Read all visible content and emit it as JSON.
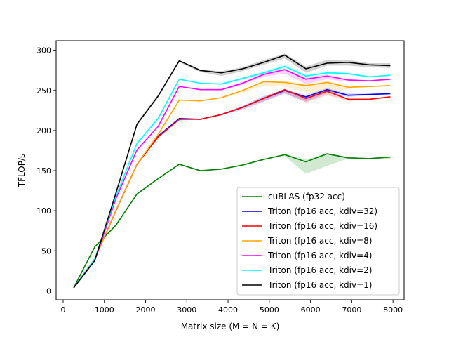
{
  "chart_data": {
    "type": "line",
    "title": "",
    "xlabel": "Matrix size (M = N = K)",
    "ylabel": "TFLOP/s",
    "xlim": [
      -170,
      8270
    ],
    "ylim": [
      -11,
      312
    ],
    "xticks": [
      0,
      1000,
      2000,
      3000,
      4000,
      5000,
      6000,
      7000,
      8000
    ],
    "yticks": [
      0,
      50,
      100,
      150,
      200,
      250,
      300
    ],
    "grid": false,
    "legend_position": "lower right",
    "x": [
      256,
      768,
      1280,
      1792,
      2304,
      2816,
      3328,
      3840,
      4352,
      4864,
      5376,
      5888,
      6400,
      6912,
      7424,
      7936
    ],
    "series": [
      {
        "name": "cuBLAS (fp32 acc)",
        "color": "#008000",
        "values": [
          4,
          55,
          82,
          121,
          140,
          158,
          150,
          152,
          157,
          164,
          170,
          161,
          171,
          166,
          165,
          167
        ],
        "band_low": [
          4,
          55,
          82,
          121,
          140,
          158,
          150,
          152,
          157,
          164,
          168,
          146,
          156,
          165,
          165,
          164
        ],
        "band_high": [
          4,
          55,
          82,
          121,
          140,
          158,
          150,
          152,
          157,
          164,
          171,
          164,
          172,
          167,
          166,
          168
        ]
      },
      {
        "name": "Triton (fp16 acc, kdiv=32)",
        "color": "#0000ff",
        "values": [
          4,
          40,
          100,
          158,
          193,
          215,
          214,
          220,
          229,
          240,
          250,
          242,
          251,
          244,
          245,
          246
        ],
        "band_low": [
          4,
          40,
          100,
          158,
          193,
          215,
          214,
          219,
          226,
          236,
          246,
          236,
          247,
          242,
          244,
          245
        ],
        "band_high": [
          4,
          40,
          100,
          158,
          193,
          215,
          214,
          221,
          231,
          243,
          251,
          244,
          253,
          246,
          246,
          247
        ]
      },
      {
        "name": "Triton (fp16 acc, kdiv=16)",
        "color": "#ff0000",
        "values": [
          4,
          40,
          100,
          158,
          192,
          214,
          214,
          220,
          229,
          240,
          251,
          240,
          249,
          239,
          239,
          242
        ],
        "band_low": [
          4,
          40,
          100,
          158,
          192,
          214,
          214,
          219,
          228,
          237,
          247,
          235,
          244,
          237,
          238,
          241
        ],
        "band_high": [
          4,
          40,
          100,
          158,
          192,
          214,
          214,
          221,
          230,
          242,
          252,
          242,
          251,
          240,
          240,
          243
        ]
      },
      {
        "name": "Triton (fp16 acc, kdiv=8)",
        "color": "#ffa500",
        "values": [
          4,
          40,
          100,
          158,
          195,
          238,
          237,
          241,
          250,
          261,
          260,
          256,
          260,
          254,
          255,
          256
        ],
        "band_low": [
          4,
          40,
          100,
          158,
          195,
          238,
          237,
          240,
          247,
          256,
          255,
          248,
          245,
          252,
          254,
          255
        ],
        "band_high": [
          4,
          40,
          100,
          158,
          195,
          238,
          237,
          242,
          251,
          262,
          262,
          258,
          262,
          256,
          256,
          257
        ]
      },
      {
        "name": "Triton (fp16 acc, kdiv=4)",
        "color": "#ff00ff",
        "values": [
          4,
          38,
          115,
          176,
          205,
          255,
          251,
          251,
          259,
          270,
          276,
          264,
          268,
          263,
          262,
          264
        ],
        "band_low": [
          4,
          38,
          115,
          176,
          205,
          255,
          251,
          250,
          257,
          267,
          271,
          258,
          264,
          261,
          261,
          263
        ],
        "band_high": [
          4,
          38,
          115,
          176,
          205,
          255,
          251,
          252,
          261,
          272,
          277,
          266,
          270,
          264,
          263,
          265
        ]
      },
      {
        "name": "Triton (fp16 acc, kdiv=2)",
        "color": "#00ffff",
        "values": [
          4,
          40,
          118,
          184,
          215,
          264,
          259,
          258,
          265,
          272,
          280,
          268,
          272,
          271,
          267,
          269
        ],
        "band_low": [
          4,
          40,
          118,
          184,
          215,
          264,
          259,
          257,
          263,
          270,
          276,
          265,
          270,
          269,
          266,
          268
        ],
        "band_high": [
          4,
          40,
          118,
          184,
          215,
          264,
          259,
          259,
          266,
          274,
          282,
          270,
          274,
          272,
          268,
          270
        ]
      },
      {
        "name": "Triton (fp16 acc, kdiv=1)",
        "color": "#000000",
        "values": [
          4,
          38,
          122,
          208,
          243,
          287,
          275,
          272,
          277,
          285,
          294,
          277,
          284,
          285,
          282,
          281
        ],
        "band_low": [
          4,
          38,
          122,
          206,
          241,
          285,
          273,
          268,
          274,
          282,
          290,
          272,
          281,
          281,
          279,
          278
        ],
        "band_high": [
          4,
          38,
          122,
          210,
          245,
          288,
          276,
          274,
          279,
          288,
          296,
          280,
          288,
          288,
          284,
          284
        ]
      }
    ]
  }
}
